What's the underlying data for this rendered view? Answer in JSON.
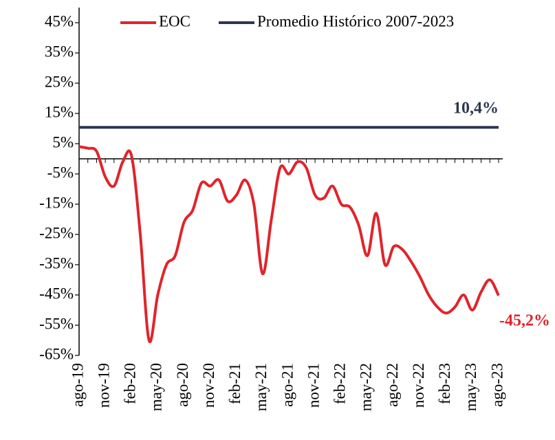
{
  "chart_data": {
    "type": "line",
    "legend": "top",
    "categories": [
      "ago-19",
      null,
      null,
      "nov-19",
      null,
      null,
      "feb-20",
      null,
      null,
      "may-20",
      null,
      null,
      "ago-20",
      null,
      null,
      "nov-20",
      null,
      null,
      "feb-21",
      null,
      null,
      "may-21",
      null,
      null,
      "ago-21",
      null,
      null,
      "nov-21",
      null,
      null,
      "feb-22",
      null,
      null,
      "may-22",
      null,
      null,
      "ago-22",
      null,
      null,
      "nov-22",
      null,
      null,
      "feb-23",
      null,
      null,
      "may-23",
      null,
      null,
      "ago-23"
    ],
    "series": [
      {
        "name": "EOC",
        "color": "#e0242b",
        "values": [
          4,
          3.5,
          2.5,
          -6,
          -9,
          -1,
          1,
          -25,
          -60,
          -45,
          -35,
          -32,
          -21,
          -17,
          -8,
          -9,
          -7,
          -14,
          -12,
          -7,
          -15,
          -38,
          -20,
          -3,
          -5,
          -1,
          -3,
          -12,
          -13,
          -9,
          -15,
          -16,
          -22,
          -32,
          -18,
          -35,
          -29,
          -30,
          -34,
          -39,
          -45,
          -49,
          -51,
          -49,
          -45,
          -50,
          -44,
          -40,
          -45.2
        ]
      },
      {
        "name": "Promedio Histórico 2007-2023",
        "color": "#2e3654",
        "values": [
          10.4,
          10.4,
          10.4,
          10.4,
          10.4,
          10.4,
          10.4,
          10.4,
          10.4,
          10.4,
          10.4,
          10.4,
          10.4,
          10.4,
          10.4,
          10.4,
          10.4,
          10.4,
          10.4,
          10.4,
          10.4,
          10.4,
          10.4,
          10.4,
          10.4,
          10.4,
          10.4,
          10.4,
          10.4,
          10.4,
          10.4,
          10.4,
          10.4,
          10.4,
          10.4,
          10.4,
          10.4,
          10.4,
          10.4,
          10.4,
          10.4,
          10.4,
          10.4,
          10.4,
          10.4,
          10.4,
          10.4,
          10.4,
          10.4
        ]
      }
    ],
    "annotations": [
      {
        "text": "10,4%",
        "series": 1
      },
      {
        "text": "-45,2%",
        "series": 0
      }
    ],
    "ylim": [
      -65,
      50
    ],
    "yticks": [
      {
        "value": 45,
        "label": "45%"
      },
      {
        "value": 35,
        "label": "35%"
      },
      {
        "value": 25,
        "label": "25%"
      },
      {
        "value": 15,
        "label": "15%"
      },
      {
        "value": 5,
        "label": "5%"
      },
      {
        "value": -5,
        "label": "-5%"
      },
      {
        "value": -15,
        "label": "-15%"
      },
      {
        "value": -25,
        "label": "-25%"
      },
      {
        "value": -35,
        "label": "-35%"
      },
      {
        "value": -45,
        "label": "-45%"
      },
      {
        "value": -55,
        "label": "-55%"
      },
      {
        "value": -65,
        "label": "-65%"
      }
    ],
    "grid": false
  }
}
